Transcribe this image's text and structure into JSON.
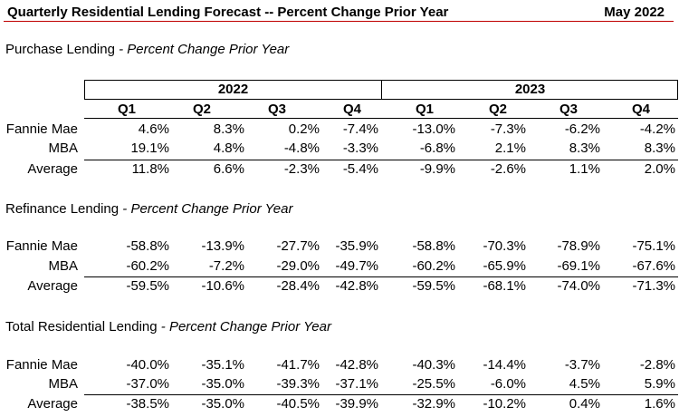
{
  "header": {
    "title": "Quarterly Residential Lending Forecast -- Percent Change Prior Year",
    "date": "May 2022"
  },
  "years": [
    "2022",
    "2023"
  ],
  "quarters": [
    "Q1",
    "Q2",
    "Q3",
    "Q4",
    "Q1",
    "Q2",
    "Q3",
    "Q4"
  ],
  "sections": [
    {
      "name": "Purchase Lending",
      "subtitle": "- Percent Change Prior Year",
      "rows": [
        {
          "label": "Fannie Mae",
          "values": [
            "4.6%",
            "8.3%",
            "0.2%",
            "-7.4%",
            "-13.0%",
            "-7.3%",
            "-6.2%",
            "-4.2%"
          ]
        },
        {
          "label": "MBA",
          "values": [
            "19.1%",
            "4.8%",
            "-4.8%",
            "-3.3%",
            "-6.8%",
            "2.1%",
            "8.3%",
            "8.3%"
          ]
        },
        {
          "label": "Average",
          "values": [
            "11.8%",
            "6.6%",
            "-2.3%",
            "-5.4%",
            "-9.9%",
            "-2.6%",
            "1.1%",
            "2.0%"
          ]
        }
      ]
    },
    {
      "name": "Refinance Lending",
      "subtitle": "- Percent Change Prior Year",
      "rows": [
        {
          "label": "Fannie Mae",
          "values": [
            "-58.8%",
            "-13.9%",
            "-27.7%",
            "-35.9%",
            "-58.8%",
            "-70.3%",
            "-78.9%",
            "-75.1%"
          ]
        },
        {
          "label": "MBA",
          "values": [
            "-60.2%",
            "-7.2%",
            "-29.0%",
            "-49.7%",
            "-60.2%",
            "-65.9%",
            "-69.1%",
            "-67.6%"
          ]
        },
        {
          "label": "Average",
          "values": [
            "-59.5%",
            "-10.6%",
            "-28.4%",
            "-42.8%",
            "-59.5%",
            "-68.1%",
            "-74.0%",
            "-71.3%"
          ]
        }
      ]
    },
    {
      "name": "Total Residential Lending",
      "subtitle": "- Percent Change Prior Year",
      "rows": [
        {
          "label": "Fannie Mae",
          "values": [
            "-40.0%",
            "-35.1%",
            "-41.7%",
            "-42.8%",
            "-40.3%",
            "-14.4%",
            "-3.7%",
            "-2.8%"
          ]
        },
        {
          "label": "MBA",
          "values": [
            "-37.0%",
            "-35.0%",
            "-39.3%",
            "-37.1%",
            "-25.5%",
            "-6.0%",
            "4.5%",
            "5.9%"
          ]
        },
        {
          "label": "Average",
          "values": [
            "-38.5%",
            "-35.0%",
            "-40.5%",
            "-39.9%",
            "-32.9%",
            "-10.2%",
            "0.4%",
            "1.6%"
          ]
        }
      ]
    }
  ]
}
